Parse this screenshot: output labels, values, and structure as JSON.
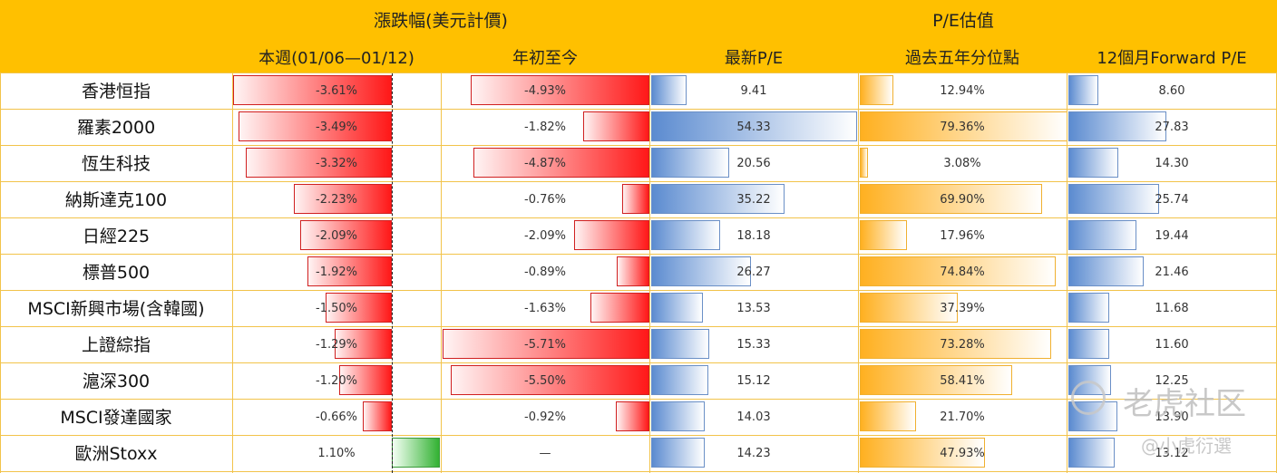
{
  "header": {
    "group_change": "漲跌幅(美元計價)",
    "group_pe": "P/E估值",
    "col_week": "本週(01/06—01/12)",
    "col_ytd": "年初至今",
    "col_pe": "最新P/E",
    "col_pct": "過去五年分位點",
    "col_fwd": "12個月Forward P/E"
  },
  "rows": [
    {
      "name": "香港恒指",
      "week": -3.61,
      "week_label": "-3.61%",
      "ytd": -4.93,
      "ytd_label": "-4.93%",
      "pe": 9.41,
      "pe_label": "9.41",
      "pct": 12.94,
      "pct_label": "12.94%",
      "fwd": 8.6,
      "fwd_label": "8.60"
    },
    {
      "name": "羅素2000",
      "week": -3.49,
      "week_label": "-3.49%",
      "ytd": -1.82,
      "ytd_label": "-1.82%",
      "pe": 54.33,
      "pe_label": "54.33",
      "pct": 79.36,
      "pct_label": "79.36%",
      "fwd": 27.83,
      "fwd_label": "27.83"
    },
    {
      "name": "恆生科技",
      "week": -3.32,
      "week_label": "-3.32%",
      "ytd": -4.87,
      "ytd_label": "-4.87%",
      "pe": 20.56,
      "pe_label": "20.56",
      "pct": 3.08,
      "pct_label": "3.08%",
      "fwd": 14.3,
      "fwd_label": "14.30"
    },
    {
      "name": "納斯達克100",
      "week": -2.23,
      "week_label": "-2.23%",
      "ytd": -0.76,
      "ytd_label": "-0.76%",
      "pe": 35.22,
      "pe_label": "35.22",
      "pct": 69.9,
      "pct_label": "69.90%",
      "fwd": 25.74,
      "fwd_label": "25.74"
    },
    {
      "name": "日經225",
      "week": -2.09,
      "week_label": "-2.09%",
      "ytd": -2.09,
      "ytd_label": "-2.09%",
      "pe": 18.18,
      "pe_label": "18.18",
      "pct": 17.96,
      "pct_label": "17.96%",
      "fwd": 19.44,
      "fwd_label": "19.44"
    },
    {
      "name": "標普500",
      "week": -1.92,
      "week_label": "-1.92%",
      "ytd": -0.89,
      "ytd_label": "-0.89%",
      "pe": 26.27,
      "pe_label": "26.27",
      "pct": 74.84,
      "pct_label": "74.84%",
      "fwd": 21.46,
      "fwd_label": "21.46"
    },
    {
      "name": "MSCI新興市場(含韓國)",
      "week": -1.5,
      "week_label": "-1.50%",
      "ytd": -1.63,
      "ytd_label": "-1.63%",
      "pe": 13.53,
      "pe_label": "13.53",
      "pct": 37.39,
      "pct_label": "37.39%",
      "fwd": 11.68,
      "fwd_label": "11.68"
    },
    {
      "name": "上證綜指",
      "week": -1.29,
      "week_label": "-1.29%",
      "ytd": -5.71,
      "ytd_label": "-5.71%",
      "pe": 15.33,
      "pe_label": "15.33",
      "pct": 73.28,
      "pct_label": "73.28%",
      "fwd": 11.6,
      "fwd_label": "11.60"
    },
    {
      "name": "滬深300",
      "week": -1.2,
      "week_label": "-1.20%",
      "ytd": -5.5,
      "ytd_label": "-5.50%",
      "pe": 15.12,
      "pe_label": "15.12",
      "pct": 58.41,
      "pct_label": "58.41%",
      "fwd": 12.25,
      "fwd_label": "12.25"
    },
    {
      "name": "MSCI發達國家",
      "week": -0.66,
      "week_label": "-0.66%",
      "ytd": -0.92,
      "ytd_label": "-0.92%",
      "pe": 14.03,
      "pe_label": "14.03",
      "pct": 21.7,
      "pct_label": "21.70%",
      "fwd": 13.9,
      "fwd_label": "13.90"
    },
    {
      "name": "歐洲Stoxx",
      "week": 1.1,
      "week_label": "1.10%",
      "ytd": null,
      "ytd_label": "—",
      "pe": 14.23,
      "pe_label": "14.23",
      "pct": 47.93,
      "pct_label": "47.93%",
      "fwd": 13.12,
      "fwd_label": "13.12"
    }
  ],
  "colors": {
    "header": "#ffc000",
    "negative": "#ff1818",
    "positive": "#33b233",
    "pe_bar": "#5b8bd0",
    "percentile_bar": "#ffb020"
  },
  "watermark": {
    "brand": "老虎社区",
    "handle": "@小虎衍選",
    "icon": "tiger-logo-icon"
  }
}
